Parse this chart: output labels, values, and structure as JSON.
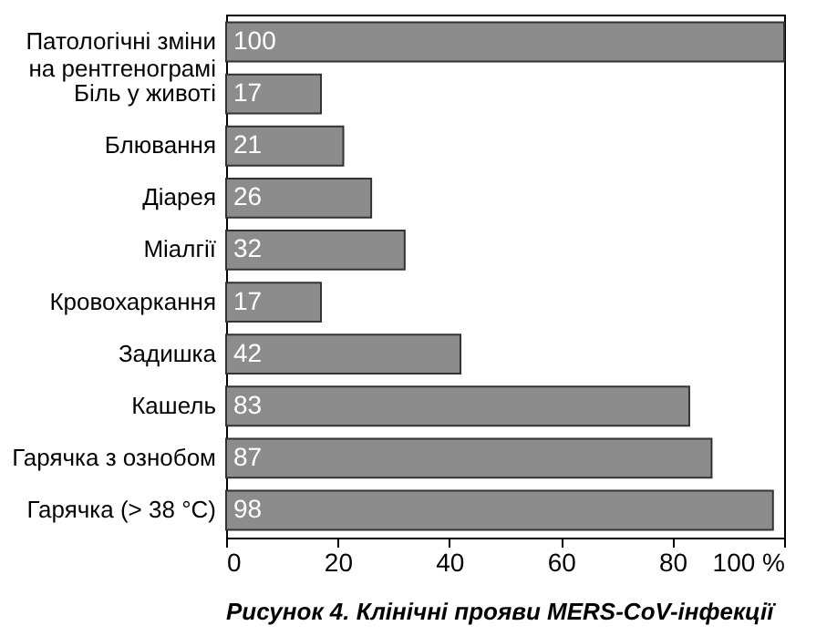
{
  "chart_data": {
    "type": "bar",
    "orientation": "horizontal",
    "title": "Рисунок 4. Клінічні прояви MERS-CoV-інфекції",
    "categories": [
      "Патологічні зміни на рентгенограмі",
      "Біль у животі",
      "Блювання",
      "Діарея",
      "Міалгії",
      "Кровохаркання",
      "Задишка",
      "Кашель",
      "Гарячка з ознобом",
      "Гарячка (> 38 °C)"
    ],
    "values": [
      100,
      17,
      21,
      26,
      32,
      17,
      42,
      83,
      87,
      98
    ],
    "color": "#8c8c8c",
    "data_labels": true,
    "xlim": [
      0,
      100
    ],
    "xticks": [
      0,
      20,
      40,
      60,
      80,
      {
        "value": 100,
        "label": "100 %"
      }
    ]
  }
}
